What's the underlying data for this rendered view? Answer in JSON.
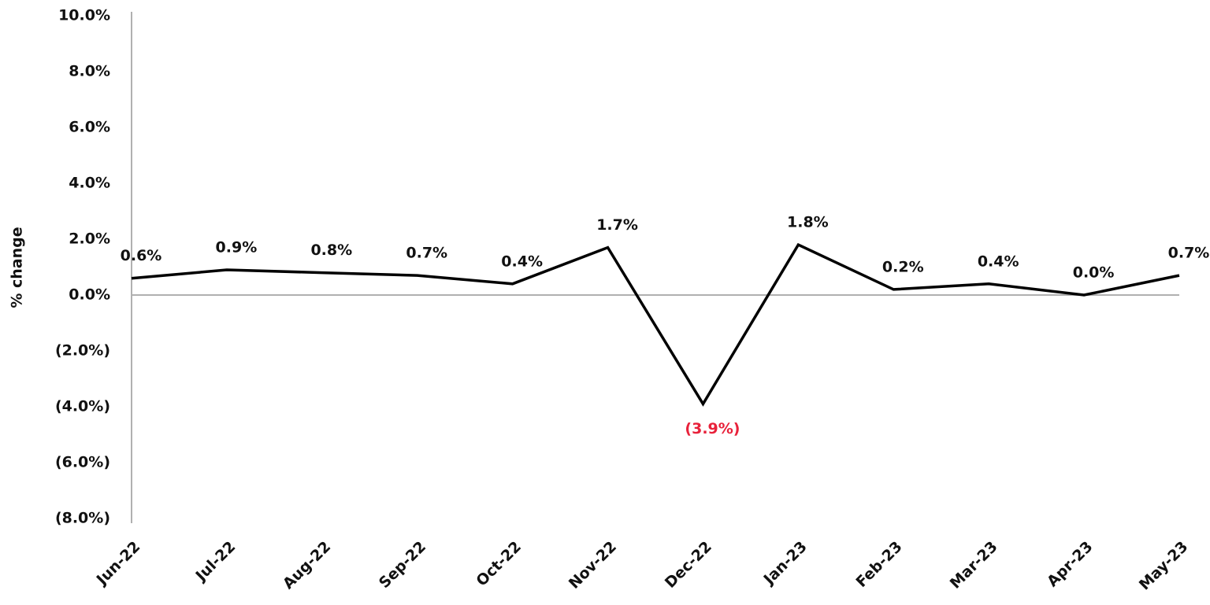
{
  "chart_data": {
    "type": "line",
    "y_axis_label": "% change",
    "categories": [
      "Jun-22",
      "Jul-22",
      "Aug-22",
      "Sep-22",
      "Oct-22",
      "Nov-22",
      "Dec-22",
      "Jan-23",
      "Feb-23",
      "Mar-23",
      "Apr-23",
      "May-23"
    ],
    "series": [
      {
        "color": "#000000",
        "negative_label_color": "#e8213a",
        "values": [
          0.6,
          0.9,
          0.8,
          0.7,
          0.4,
          1.7,
          -3.9,
          1.8,
          0.2,
          0.4,
          0.0,
          0.7
        ],
        "value_labels": [
          "0.6%",
          "0.9%",
          "0.8%",
          "0.7%",
          "0.4%",
          "1.7%",
          "(3.9%)",
          "1.8%",
          "0.2%",
          "0.4%",
          "0.0%",
          "0.7%"
        ]
      }
    ],
    "ylim": [
      -8,
      10
    ],
    "yticks": [
      {
        "value": -8,
        "label": "(8.0%)"
      },
      {
        "value": -6,
        "label": "(6.0%)"
      },
      {
        "value": -4,
        "label": "(4.0%)"
      },
      {
        "value": -2,
        "label": "(2.0%)"
      },
      {
        "value": 0,
        "label": "0.0%"
      },
      {
        "value": 2,
        "label": "2.0%"
      },
      {
        "value": 4,
        "label": "4.0%"
      },
      {
        "value": 6,
        "label": "6.0%"
      },
      {
        "value": 8,
        "label": "8.0%"
      },
      {
        "value": 10,
        "label": "10.0%"
      }
    ]
  }
}
